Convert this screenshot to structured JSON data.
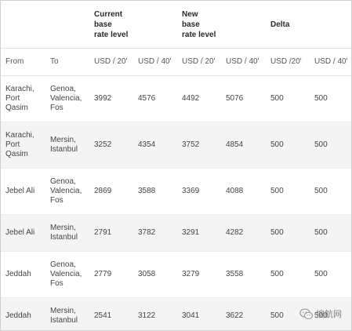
{
  "table": {
    "group_headers": [
      "",
      "",
      "Current\nbase\nrate level",
      "",
      "New\nbase\nrate level",
      "",
      "Delta",
      ""
    ],
    "sub_headers": [
      "From",
      "To",
      "USD / 20'",
      "USD / 40'",
      "USD / 20'",
      "USD / 40'",
      "USD /20'",
      "USD / 40'"
    ],
    "rows": [
      [
        "Karachi,\nPort\nQasim",
        "Genoa,\nValencia,\nFos",
        "3992",
        "4576",
        "4492",
        "5076",
        "500",
        "500"
      ],
      [
        "Karachi,\nPort\nQasim",
        "Mersin,\nIstanbul",
        "3252",
        "4354",
        "3752",
        "4854",
        "500",
        "500"
      ],
      [
        "Jebel Ali",
        "Genoa,\nValencia,\nFos",
        "2869",
        "3588",
        "3369",
        "4088",
        "500",
        "500"
      ],
      [
        "Jebel Ali",
        "Mersin,\nIstanbul",
        "2791",
        "3782",
        "3291",
        "4282",
        "500",
        "500"
      ],
      [
        "Jeddah",
        "Genoa,\nValencia,\nFos",
        "2779",
        "3058",
        "3279",
        "3558",
        "500",
        "500"
      ],
      [
        "Jeddah",
        "Mersin,\nIstanbul",
        "2541",
        "3122",
        "3041",
        "3622",
        "500",
        "500"
      ]
    ]
  },
  "watermark": {
    "text": "搜航网",
    "icon": "wechat-icon"
  }
}
